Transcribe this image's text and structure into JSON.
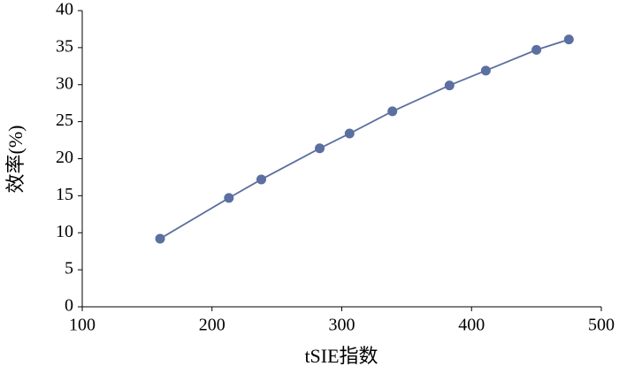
{
  "chart_data": {
    "type": "line",
    "x_label": "tSIE指数",
    "y_label": "效率(%)",
    "x": [
      160,
      213,
      238,
      283,
      306,
      339,
      383,
      411,
      450,
      475
    ],
    "values": [
      9.2,
      14.7,
      17.2,
      21.4,
      23.4,
      26.4,
      29.9,
      31.9,
      34.7,
      36.1
    ],
    "color": "#5b6fa0",
    "xlim": [
      100,
      500
    ],
    "xticks": [
      100,
      200,
      300,
      400,
      500
    ],
    "ylim": [
      0,
      40
    ],
    "yticks": [
      0,
      5,
      10,
      15,
      20,
      25,
      30,
      35,
      40
    ],
    "grid": false
  }
}
